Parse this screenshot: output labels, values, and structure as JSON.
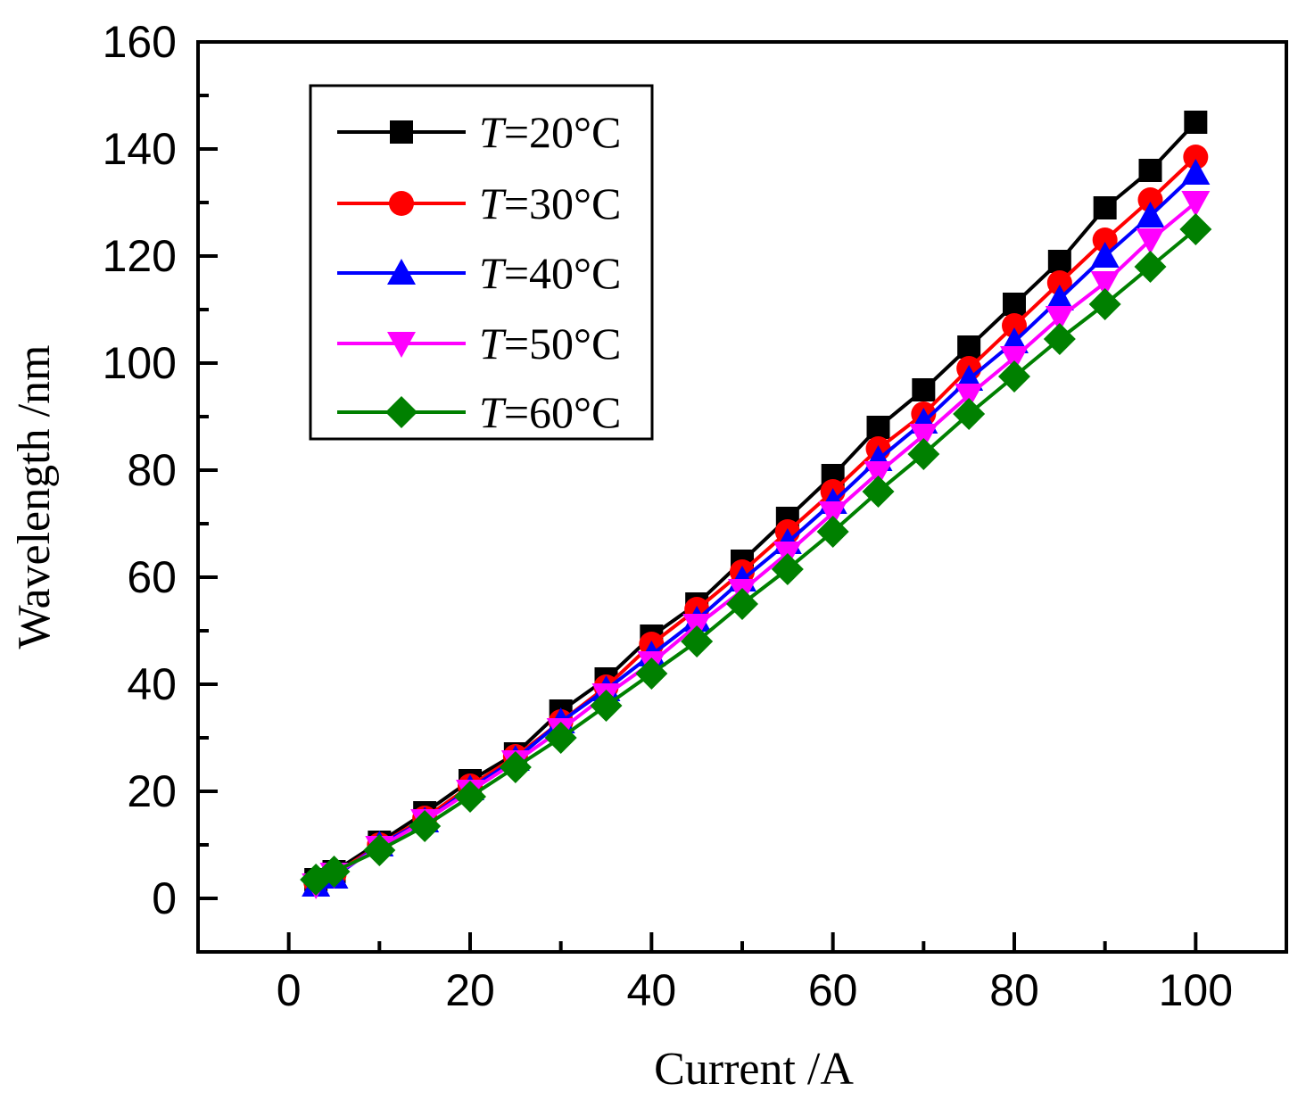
{
  "chart_data": {
    "type": "line",
    "title": "",
    "xlabel": "Current /A",
    "ylabel": "Wavelength /nm",
    "xlim": [
      -10,
      110
    ],
    "ylim": [
      -10,
      160
    ],
    "xticks": [
      0,
      20,
      40,
      60,
      80,
      100
    ],
    "yticks": [
      0,
      20,
      40,
      60,
      80,
      100,
      120,
      140,
      160
    ],
    "xtick_labels": [
      "0",
      "20",
      "40",
      "60",
      "80",
      100
    ],
    "ytick_labels": [
      "0",
      "20",
      "40",
      "60",
      "80",
      "100",
      "120",
      "140",
      "160"
    ],
    "grid": false,
    "legend_position": "top-left",
    "x": [
      3,
      5,
      10,
      15,
      20,
      25,
      30,
      35,
      40,
      45,
      50,
      55,
      60,
      65,
      70,
      75,
      80,
      85,
      90,
      95,
      100
    ],
    "series": [
      {
        "name": "T=20°C",
        "legend_prefix": "T",
        "legend_suffix": "=20°C",
        "color": "#000000",
        "marker": "square",
        "values": [
          3.5,
          5,
          10.5,
          16,
          22,
          27,
          35,
          41,
          49,
          55,
          63,
          71,
          79,
          88,
          95,
          103,
          111,
          119,
          129,
          136,
          145
        ]
      },
      {
        "name": "T=30°C",
        "legend_prefix": "T",
        "legend_suffix": "=30°C",
        "color": "#ff0000",
        "marker": "circle",
        "values": [
          3,
          4.5,
          10,
          15,
          21,
          26.5,
          33,
          39.5,
          47.5,
          54,
          61,
          68.5,
          76,
          84,
          90.5,
          99,
          107,
          115,
          123,
          130.5,
          138.5
        ]
      },
      {
        "name": "T=40°C",
        "legend_prefix": "T",
        "legend_suffix": "=40°C",
        "color": "#0000ff",
        "marker": "triangle-up",
        "values": [
          2.5,
          4,
          10,
          14.5,
          20.5,
          26,
          33,
          39,
          45.5,
          52,
          59.5,
          66.5,
          74,
          82,
          89,
          97,
          104,
          112,
          120,
          127.5,
          135.5
        ]
      },
      {
        "name": "T=50°C",
        "legend_prefix": "T",
        "legend_suffix": "=50°C",
        "color": "#ff00ff",
        "marker": "triangle-down",
        "values": [
          2.5,
          4.5,
          9.5,
          14.5,
          20,
          25.5,
          31.5,
          38,
          44,
          51,
          57.5,
          64.5,
          72,
          79.5,
          86.5,
          94,
          101,
          108.5,
          115,
          123,
          130
        ]
      },
      {
        "name": "T=60°C",
        "legend_prefix": "T",
        "legend_suffix": "=60°C",
        "color": "#008000",
        "marker": "diamond",
        "values": [
          3.5,
          5,
          9,
          13.5,
          19,
          24.5,
          30,
          36,
          42,
          48,
          55,
          61.5,
          68.5,
          76,
          83,
          90.5,
          97.5,
          104.5,
          111,
          118,
          125
        ]
      }
    ]
  }
}
